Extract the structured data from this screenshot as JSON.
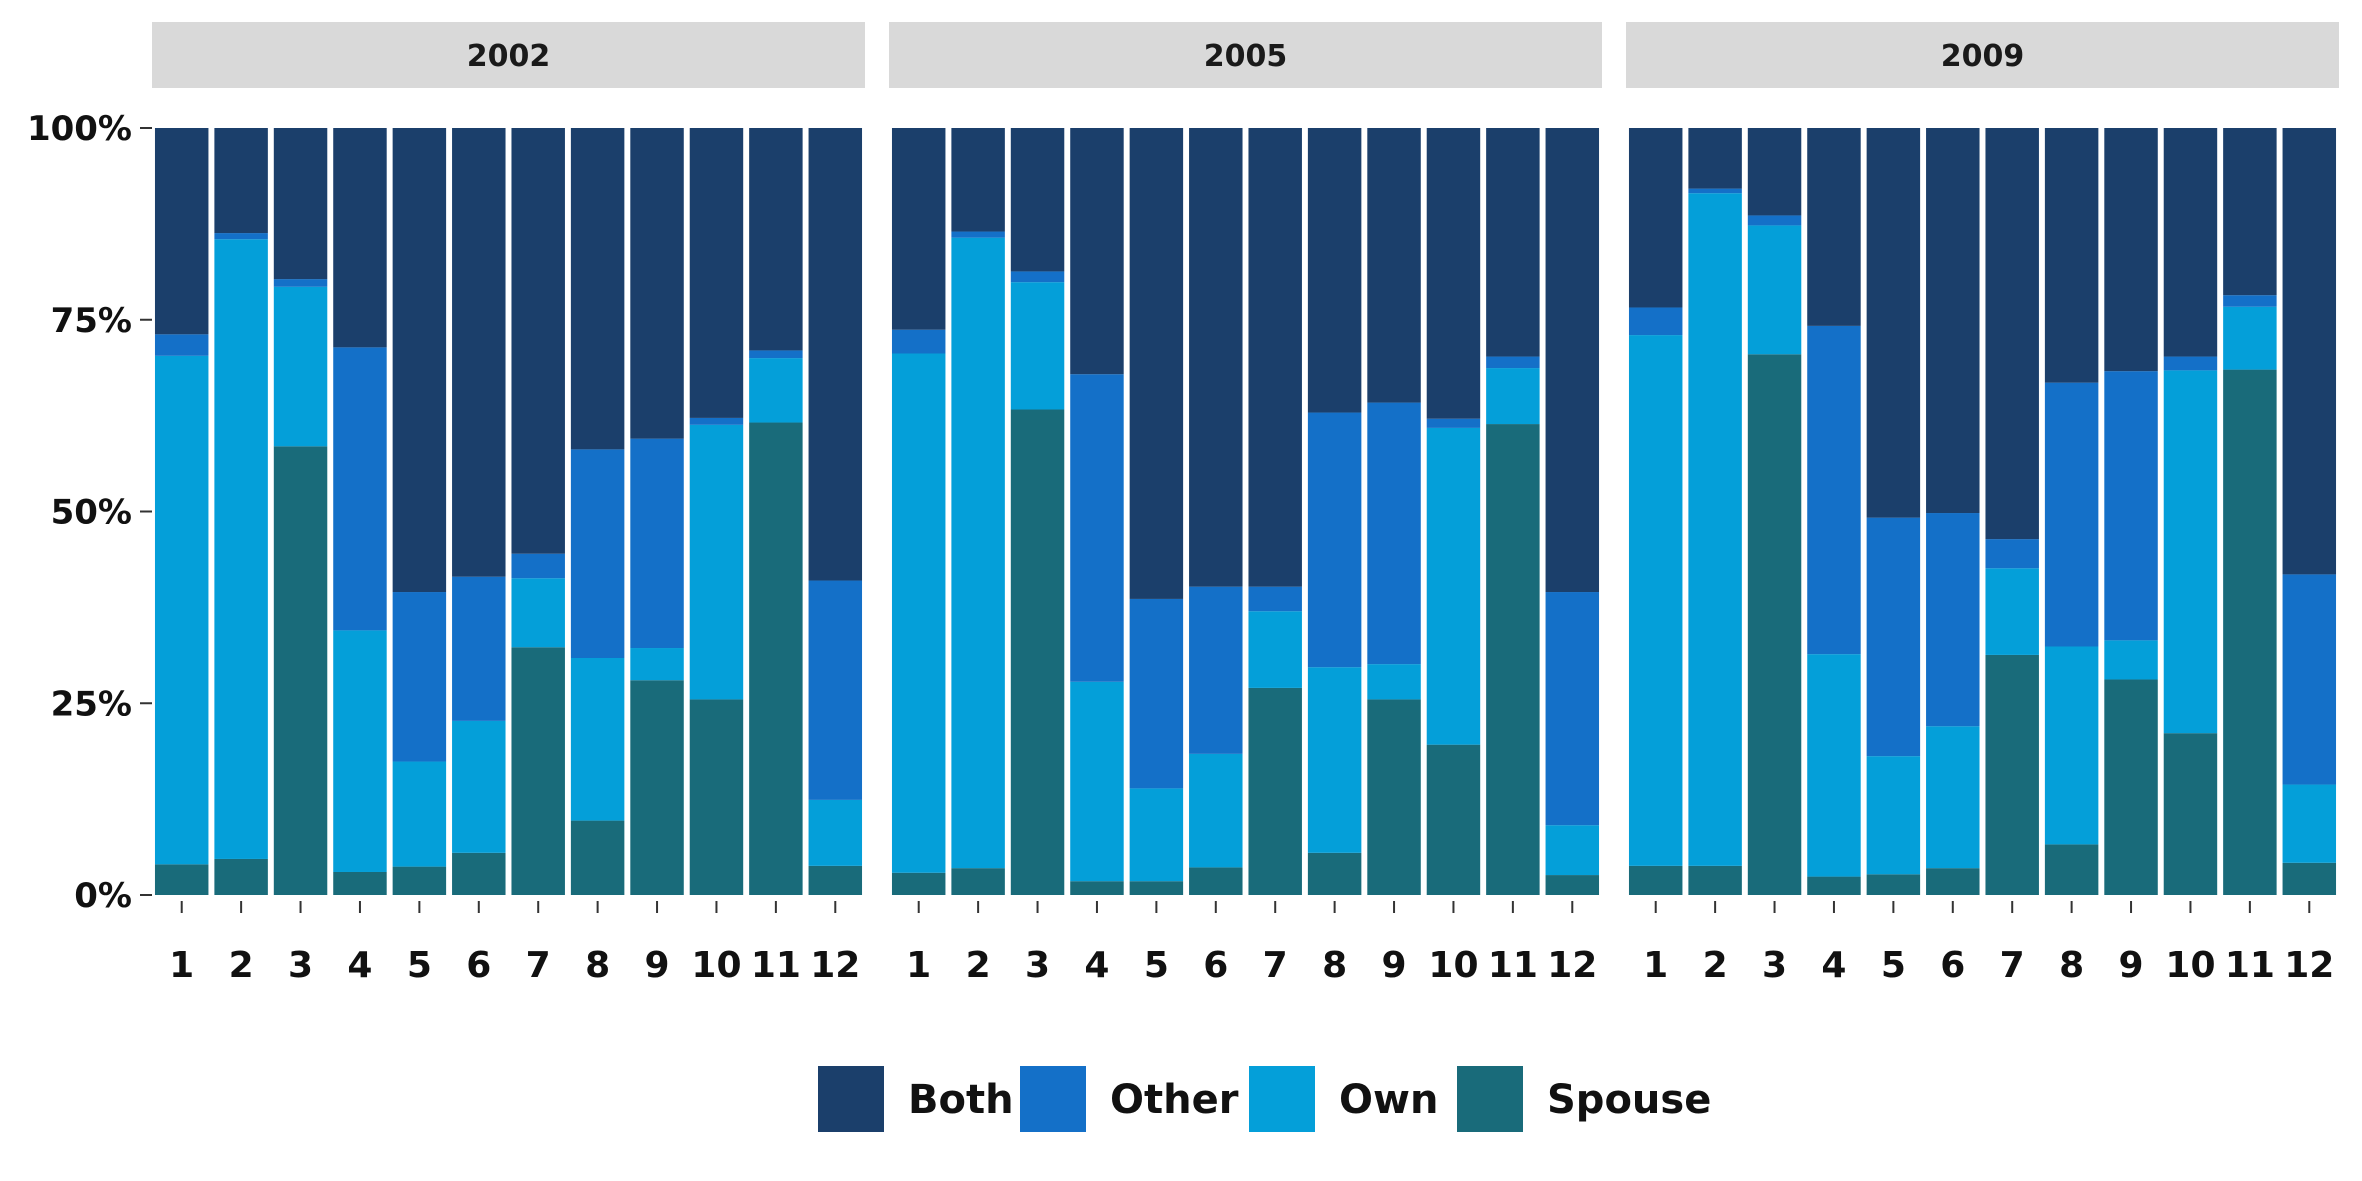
{
  "chart_data": {
    "type": "bar",
    "stacked": true,
    "percent": true,
    "facets": [
      "2002",
      "2005",
      "2009"
    ],
    "categories": [
      "1",
      "2",
      "3",
      "4",
      "5",
      "6",
      "7",
      "8",
      "9",
      "10",
      "11",
      "12"
    ],
    "y_ticks": [
      "0%",
      "25%",
      "50%",
      "75%",
      "100%"
    ],
    "ylim": [
      0,
      100
    ],
    "legend_position": "bottom",
    "grid": false,
    "series_order_bottom_to_top": [
      "Spouse",
      "Own",
      "Other",
      "Both"
    ],
    "legend_order": [
      "Both",
      "Other",
      "Own",
      "Spouse"
    ],
    "colors": {
      "Both": "#1b3f6b",
      "Other": "#1470c8",
      "Own": "#049fd9",
      "Spouse": "#196b7a"
    },
    "panels": [
      {
        "facet": "2002",
        "series": [
          {
            "name": "Spouse",
            "values": [
              4,
              4.7,
              58.5,
              3,
              3.7,
              5.5,
              32.3,
              9.7,
              28,
              25.5,
              61.6,
              3.8
            ]
          },
          {
            "name": "Own",
            "values": [
              66.3,
              80.8,
              20.8,
              31.5,
              13.7,
              17.2,
              9,
              21.2,
              4.2,
              35.8,
              8.4,
              8.6
            ]
          },
          {
            "name": "Other",
            "values": [
              2.8,
              0.8,
              1,
              36.9,
              22.1,
              18.8,
              3.2,
              27.2,
              27.3,
              0.9,
              1,
              28.6
            ]
          },
          {
            "name": "Both",
            "values": [
              26.9,
              13.7,
              19.7,
              28.6,
              60.5,
              58.5,
              55.5,
              41.9,
              40.5,
              37.8,
              29,
              59
            ]
          }
        ]
      },
      {
        "facet": "2005",
        "series": [
          {
            "name": "Spouse",
            "values": [
              2.9,
              3.5,
              63.3,
              1.8,
              1.8,
              3.6,
              27,
              5.5,
              25.5,
              19.6,
              61.4,
              2.6
            ]
          },
          {
            "name": "Own",
            "values": [
              67.7,
              82.2,
              16.6,
              26,
              12.1,
              14.8,
              10,
              24.2,
              4.6,
              41.3,
              7.3,
              6.5
            ]
          },
          {
            "name": "Other",
            "values": [
              3.1,
              0.8,
              1.4,
              40.1,
              24.7,
              21.8,
              3.2,
              33.2,
              34.1,
              1.2,
              1.5,
              30.4
            ]
          },
          {
            "name": "Both",
            "values": [
              26.3,
              13.5,
              18.7,
              32.1,
              61.4,
              59.8,
              59.8,
              37.1,
              35.8,
              37.9,
              29.8,
              60.5
            ]
          }
        ]
      },
      {
        "facet": "2009",
        "series": [
          {
            "name": "Spouse",
            "values": [
              3.8,
              3.8,
              70.5,
              2.4,
              2.7,
              3.5,
              31.3,
              6.6,
              28.1,
              21.1,
              68.5,
              4.2
            ]
          },
          {
            "name": "Own",
            "values": [
              69.2,
              87.7,
              16.8,
              29,
              15.4,
              18.5,
              11.3,
              25.8,
              5.1,
              47.3,
              8.2,
              10.2
            ]
          },
          {
            "name": "Other",
            "values": [
              3.6,
              0.6,
              1.3,
              42.8,
              31.1,
              27.8,
              3.8,
              34.4,
              35.1,
              1.8,
              1.5,
              27.4
            ]
          },
          {
            "name": "Both",
            "values": [
              23.4,
              7.9,
              11.4,
              25.8,
              50.8,
              50.2,
              53.6,
              33.2,
              31.7,
              29.8,
              21.8,
              58.2
            ]
          }
        ]
      }
    ]
  }
}
